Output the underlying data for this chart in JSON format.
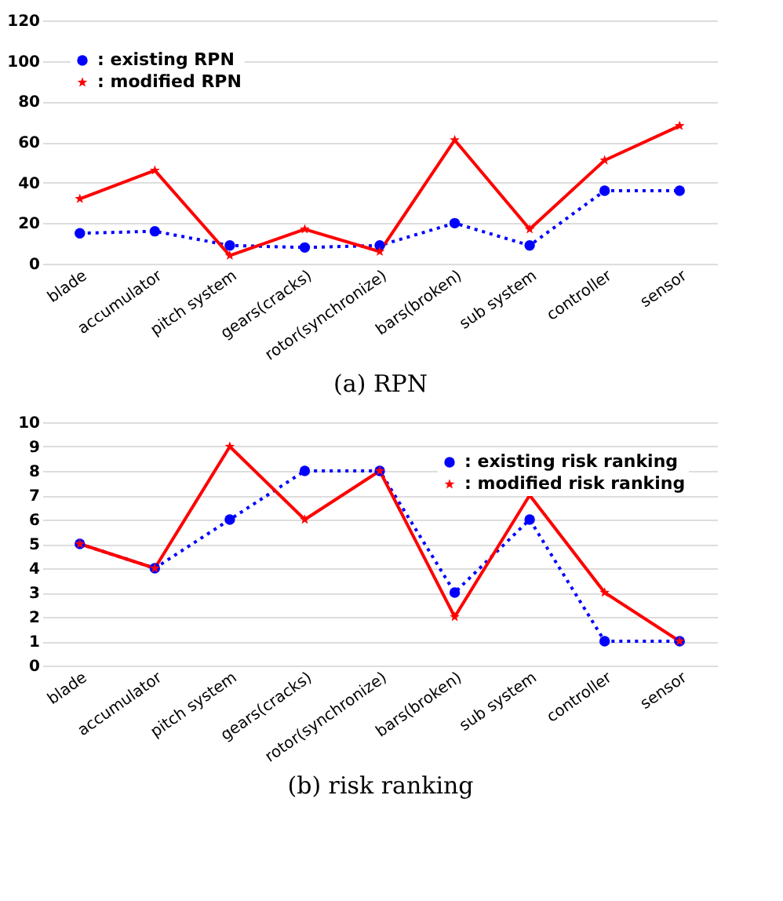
{
  "chart_data": [
    {
      "type": "line",
      "xlabel": "(a)  RPN",
      "categories": [
        "blade",
        "accumulator",
        "pitch system",
        "gears(cracks)",
        "rotor(synchronize)",
        "bars(broken)",
        "sub system",
        "controller",
        "sensor"
      ],
      "series": [
        {
          "name": ": existing RPN",
          "color": "#0000ff",
          "marker": "circle",
          "line_style": "dotted",
          "values": [
            15,
            16,
            9,
            8,
            9,
            20,
            9,
            36,
            36
          ]
        },
        {
          "name": ": modified RPN",
          "color": "#ff0000",
          "marker": "star",
          "line_style": "solid",
          "values": [
            32,
            46,
            4,
            17,
            6,
            61,
            17,
            51,
            68
          ]
        }
      ],
      "ylim": [
        0,
        120
      ],
      "yticks": [
        0,
        20,
        40,
        60,
        80,
        100,
        120
      ],
      "grid": "y",
      "legend": "top left"
    },
    {
      "type": "line",
      "xlabel": "(b)  risk  ranking",
      "categories": [
        "blade",
        "accumulator",
        "pitch system",
        "gears(cracks)",
        "rotor(synchronize)",
        "bars(broken)",
        "sub system",
        "controller",
        "sensor"
      ],
      "series": [
        {
          "name": ": existing risk ranking",
          "color": "#0000ff",
          "marker": "circle",
          "line_style": "dotted",
          "values": [
            5,
            4,
            6,
            8,
            8,
            3,
            6,
            1,
            1
          ]
        },
        {
          "name": ": modified risk ranking",
          "color": "#ff0000",
          "marker": "star",
          "line_style": "solid",
          "values": [
            5,
            4,
            9,
            6,
            8,
            2,
            7,
            3,
            1
          ]
        }
      ],
      "ylim": [
        0,
        10
      ],
      "yticks": [
        0,
        1,
        2,
        3,
        4,
        5,
        6,
        7,
        8,
        9,
        10
      ],
      "grid": "y",
      "legend": "top right"
    }
  ]
}
